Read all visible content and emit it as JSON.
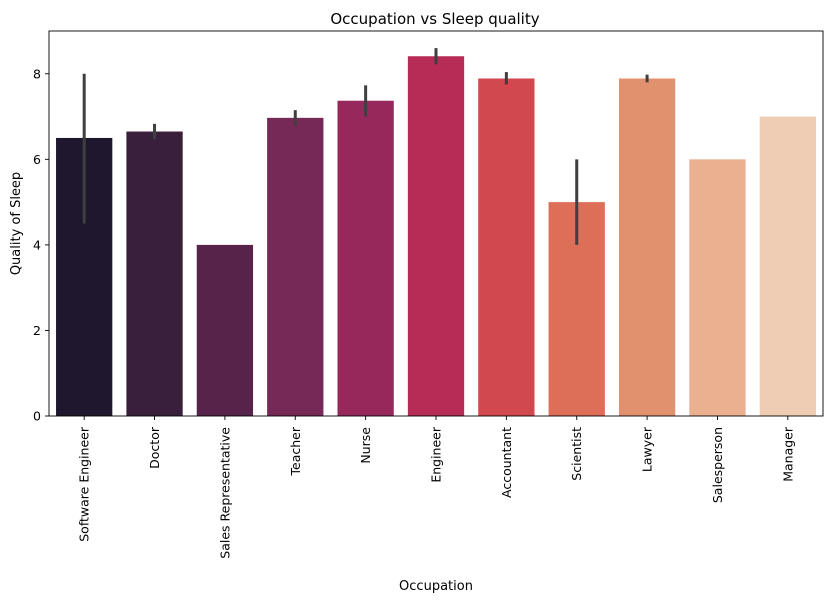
{
  "chart_data": {
    "type": "bar",
    "title": "Occupation vs Sleep quality",
    "xlabel": "Occupation",
    "ylabel": "Quality of Sleep",
    "ylim": [
      0,
      9
    ],
    "yticks": [
      0,
      2,
      4,
      6,
      8
    ],
    "grid": false,
    "categories": [
      "Software Engineer",
      "Doctor",
      "Sales Representative",
      "Teacher",
      "Nurse",
      "Engineer",
      "Accountant",
      "Scientist",
      "Lawyer",
      "Salesperson",
      "Manager"
    ],
    "values": [
      6.5,
      6.65,
      4.0,
      6.97,
      7.37,
      8.41,
      7.89,
      5.0,
      7.89,
      6.0,
      7.0
    ],
    "error_bars": [
      [
        4.5,
        8.0
      ],
      [
        6.47,
        6.83
      ],
      null,
      [
        6.78,
        7.15
      ],
      [
        7.0,
        7.73
      ],
      [
        8.22,
        8.6
      ],
      [
        7.75,
        8.04
      ],
      [
        4.0,
        6.0
      ],
      [
        7.8,
        7.98
      ],
      null,
      null
    ],
    "colors": [
      "#1f172d",
      "#3a1f3d",
      "#58234b",
      "#762857",
      "#97285c",
      "#b72c57",
      "#d1484e",
      "#dd6e58",
      "#e2916f",
      "#eab08f",
      "#efcdb4"
    ],
    "errorbar_color": "#3f3f3f"
  }
}
